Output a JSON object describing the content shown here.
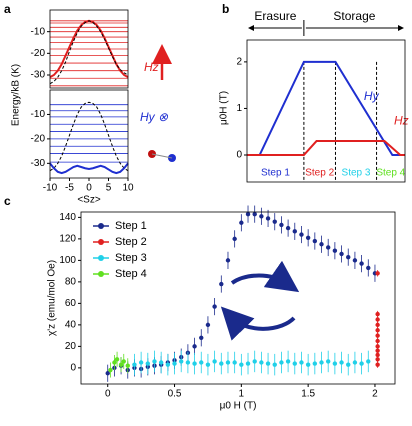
{
  "chart_data": [
    {
      "panel": "a",
      "type": "line",
      "ylabel": "Energy/kB (K)",
      "xlim": [
        -10,
        10
      ],
      "ylim": [
        -36,
        0
      ],
      "yticks": [
        -10,
        -20,
        -30
      ],
      "level_color": "#e02020",
      "levels": [
        -5,
        -6,
        -8,
        -10,
        -12.5,
        -15,
        -18,
        -21,
        -24.5,
        -28,
        -31.5,
        -35
      ],
      "series": [
        {
          "color": "#e02020",
          "x": [
            -10,
            -9,
            -8,
            -7,
            -6,
            -5,
            -4,
            -3,
            -2,
            -1,
            0,
            1,
            2,
            3,
            4,
            5,
            6,
            7,
            8,
            9,
            10
          ],
          "values": [
            -31,
            -30,
            -28,
            -25,
            -21,
            -17,
            -13,
            -9.5,
            -7,
            -5.5,
            -5,
            -5.5,
            -7,
            -9.5,
            -13,
            -17,
            -21,
            -25,
            -28,
            -30,
            -31
          ]
        },
        {
          "color": "#000000",
          "dash": true,
          "x": [
            -10,
            -9,
            -8,
            -7,
            -6,
            -5,
            -4,
            -3,
            -2,
            -1,
            0,
            1,
            2,
            3,
            4,
            5,
            6,
            7,
            8,
            9,
            10
          ],
          "values": [
            -34,
            -33,
            -31,
            -28,
            -24,
            -19,
            -14.5,
            -10.5,
            -7.5,
            -5.8,
            -5,
            -5.8,
            -7.5,
            -10,
            -13.5,
            -17.5,
            -21.5,
            -25,
            -27.5,
            -29,
            -30
          ]
        }
      ],
      "annotation": {
        "text": "Hz",
        "color": "#e02020"
      }
    },
    {
      "type": "line",
      "xlabel": "<Sz>",
      "xlim": [
        -10,
        10
      ],
      "xticks": [
        -10,
        -5,
        0,
        5,
        10
      ],
      "ylim": [
        -36,
        0
      ],
      "yticks": [
        -10,
        -20,
        -30
      ],
      "level_color": "#1f2fd0",
      "levels": [
        -6,
        -8.5,
        -11,
        -14,
        -17,
        -20,
        -23,
        -26,
        -29.5
      ],
      "series": [
        {
          "color": "#000000",
          "dash": true,
          "x": [
            -10,
            -9,
            -8,
            -7,
            -6,
            -5,
            -4,
            -3,
            -2,
            -1,
            0,
            1,
            2,
            3,
            4,
            5,
            6,
            7,
            8,
            9,
            10
          ],
          "values": [
            -33,
            -32,
            -30,
            -27,
            -23,
            -18.5,
            -14,
            -10,
            -7,
            -5.5,
            -5,
            -5.5,
            -7,
            -10,
            -14,
            -18.5,
            -23,
            -27,
            -30,
            -32,
            -33
          ]
        },
        {
          "color": "#1f2fd0",
          "x": [
            -10,
            -9,
            -8,
            -7,
            -6,
            -5,
            -4,
            -3,
            -2,
            -1,
            0,
            1,
            2,
            3,
            4,
            5,
            6,
            7,
            8,
            9,
            10
          ],
          "values": [
            -30,
            -32,
            -33.5,
            -34,
            -33.5,
            -32.5,
            -31.5,
            -31,
            -31.5,
            -32,
            -32.3,
            -32,
            -31.5,
            -31,
            -31.5,
            -32.5,
            -33.5,
            -34,
            -33.5,
            -32,
            -30
          ]
        }
      ],
      "annotation": {
        "text": "Hy ⊗",
        "color": "#1f2fd0"
      }
    },
    {
      "panel": "b",
      "type": "line",
      "ylabel": "μ0H (T)",
      "xlim": [
        0,
        10
      ],
      "ylim": [
        -0.58,
        2.47
      ],
      "yticks": [
        0,
        1,
        2
      ],
      "boundaries": [
        3.6,
        5.6,
        8.2
      ],
      "phases": [
        "Erasure",
        "Storage"
      ],
      "steps": [
        {
          "name": "Step 1",
          "color": "#1f2fd0"
        },
        {
          "name": "Step 2",
          "color": "#e02020"
        },
        {
          "name": "Step 3",
          "color": "#20d0e8"
        },
        {
          "name": "Step 4",
          "color": "#60e020"
        }
      ],
      "series": [
        {
          "name": "Hy",
          "color": "#1f2fd0",
          "x": [
            0,
            0.8,
            3.6,
            5.6,
            9.2,
            10
          ],
          "values": [
            0,
            0,
            2,
            2,
            0,
            0
          ]
        },
        {
          "name": "Hz",
          "color": "#e02020",
          "x": [
            0,
            3.6,
            4.4,
            8.7,
            9.7,
            10
          ],
          "values": [
            0,
            0,
            0.3,
            0.3,
            0,
            0
          ]
        }
      ]
    },
    {
      "panel": "c",
      "type": "scatter",
      "xlabel": "μ0 H (T)",
      "ylabel": "χ'z (emu/mol Oe)",
      "xlim": [
        -0.2,
        2.15
      ],
      "xticks": [
        0,
        0.5,
        1,
        1.5,
        2
      ],
      "ylim": [
        -15,
        145
      ],
      "yticks": [
        0,
        20,
        40,
        60,
        80,
        100,
        120,
        140
      ],
      "legend": "upper left",
      "series": [
        {
          "name": "Step 1",
          "color": "#1a2a8c",
          "error": 8,
          "x": [
            0,
            0.05,
            0.1,
            0.15,
            0.2,
            0.25,
            0.3,
            0.35,
            0.4,
            0.45,
            0.5,
            0.55,
            0.6,
            0.65,
            0.7,
            0.75,
            0.8,
            0.85,
            0.9,
            0.95,
            1,
            1.05,
            1.1,
            1.15,
            1.2,
            1.25,
            1.3,
            1.35,
            1.4,
            1.45,
            1.5,
            1.55,
            1.6,
            1.65,
            1.7,
            1.75,
            1.8,
            1.85,
            1.9,
            1.95,
            2
          ],
          "values": [
            -5,
            0,
            2,
            -2,
            0,
            -1,
            1,
            2,
            3,
            5,
            7,
            10,
            14,
            20,
            28,
            40,
            57,
            78,
            100,
            120,
            135,
            143,
            143,
            141,
            139,
            136,
            133,
            130,
            127,
            124,
            121,
            118,
            115,
            112,
            109,
            106,
            103,
            100,
            97,
            93,
            88
          ]
        },
        {
          "name": "Step 2",
          "color": "#e02020",
          "error": 3,
          "x": [
            2.02,
            2.02,
            2.02,
            2.02,
            2.02,
            2.02,
            2.02,
            2.02,
            2.02,
            2.02,
            2.02,
            2.02
          ],
          "values": [
            3,
            8,
            12,
            16,
            20,
            25,
            30,
            35,
            40,
            45,
            50,
            88
          ]
        },
        {
          "name": "Step 3",
          "color": "#20d0e8",
          "error": 10,
          "x": [
            0.2,
            0.25,
            0.3,
            0.35,
            0.4,
            0.45,
            0.5,
            0.55,
            0.6,
            0.65,
            0.7,
            0.75,
            0.8,
            0.85,
            0.9,
            0.95,
            1,
            1.05,
            1.1,
            1.15,
            1.2,
            1.25,
            1.3,
            1.35,
            1.4,
            1.45,
            1.5,
            1.55,
            1.6,
            1.65,
            1.7,
            1.75,
            1.8,
            1.85,
            1.9,
            1.95
          ],
          "values": [
            3,
            5,
            4,
            6,
            5,
            3,
            4,
            6,
            5,
            4,
            5,
            3,
            6,
            4,
            5,
            5,
            3,
            4,
            6,
            5,
            4,
            3,
            5,
            6,
            4,
            5,
            3,
            4,
            5,
            6,
            4,
            5,
            3,
            5,
            4,
            6
          ]
        },
        {
          "name": "Step 4",
          "color": "#60e020",
          "error": 7,
          "x": [
            0.02,
            0.05,
            0.07,
            0.1,
            0.12,
            0.15
          ],
          "values": [
            -2,
            5,
            8,
            3,
            6,
            2
          ]
        }
      ]
    }
  ]
}
